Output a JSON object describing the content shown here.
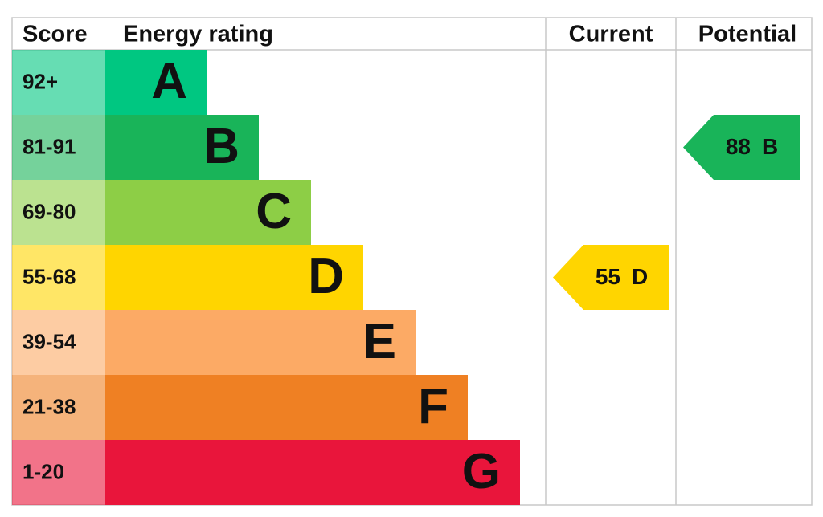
{
  "headers": {
    "score": "Score",
    "rating": "Energy rating",
    "current": "Current",
    "potential": "Potential"
  },
  "bands": [
    {
      "score": "92+",
      "letter": "A",
      "color": "#00c781"
    },
    {
      "score": "81-91",
      "letter": "B",
      "color": "#19b459"
    },
    {
      "score": "69-80",
      "letter": "C",
      "color": "#8dce46"
    },
    {
      "score": "55-68",
      "letter": "D",
      "color": "#ffd500"
    },
    {
      "score": "39-54",
      "letter": "E",
      "color": "#fcaa65"
    },
    {
      "score": "21-38",
      "letter": "F",
      "color": "#ef8023"
    },
    {
      "score": "1-20",
      "letter": "G",
      "color": "#e9153b"
    }
  ],
  "current": {
    "value": 55,
    "letter": "D"
  },
  "potential": {
    "value": 88,
    "letter": "B"
  }
}
